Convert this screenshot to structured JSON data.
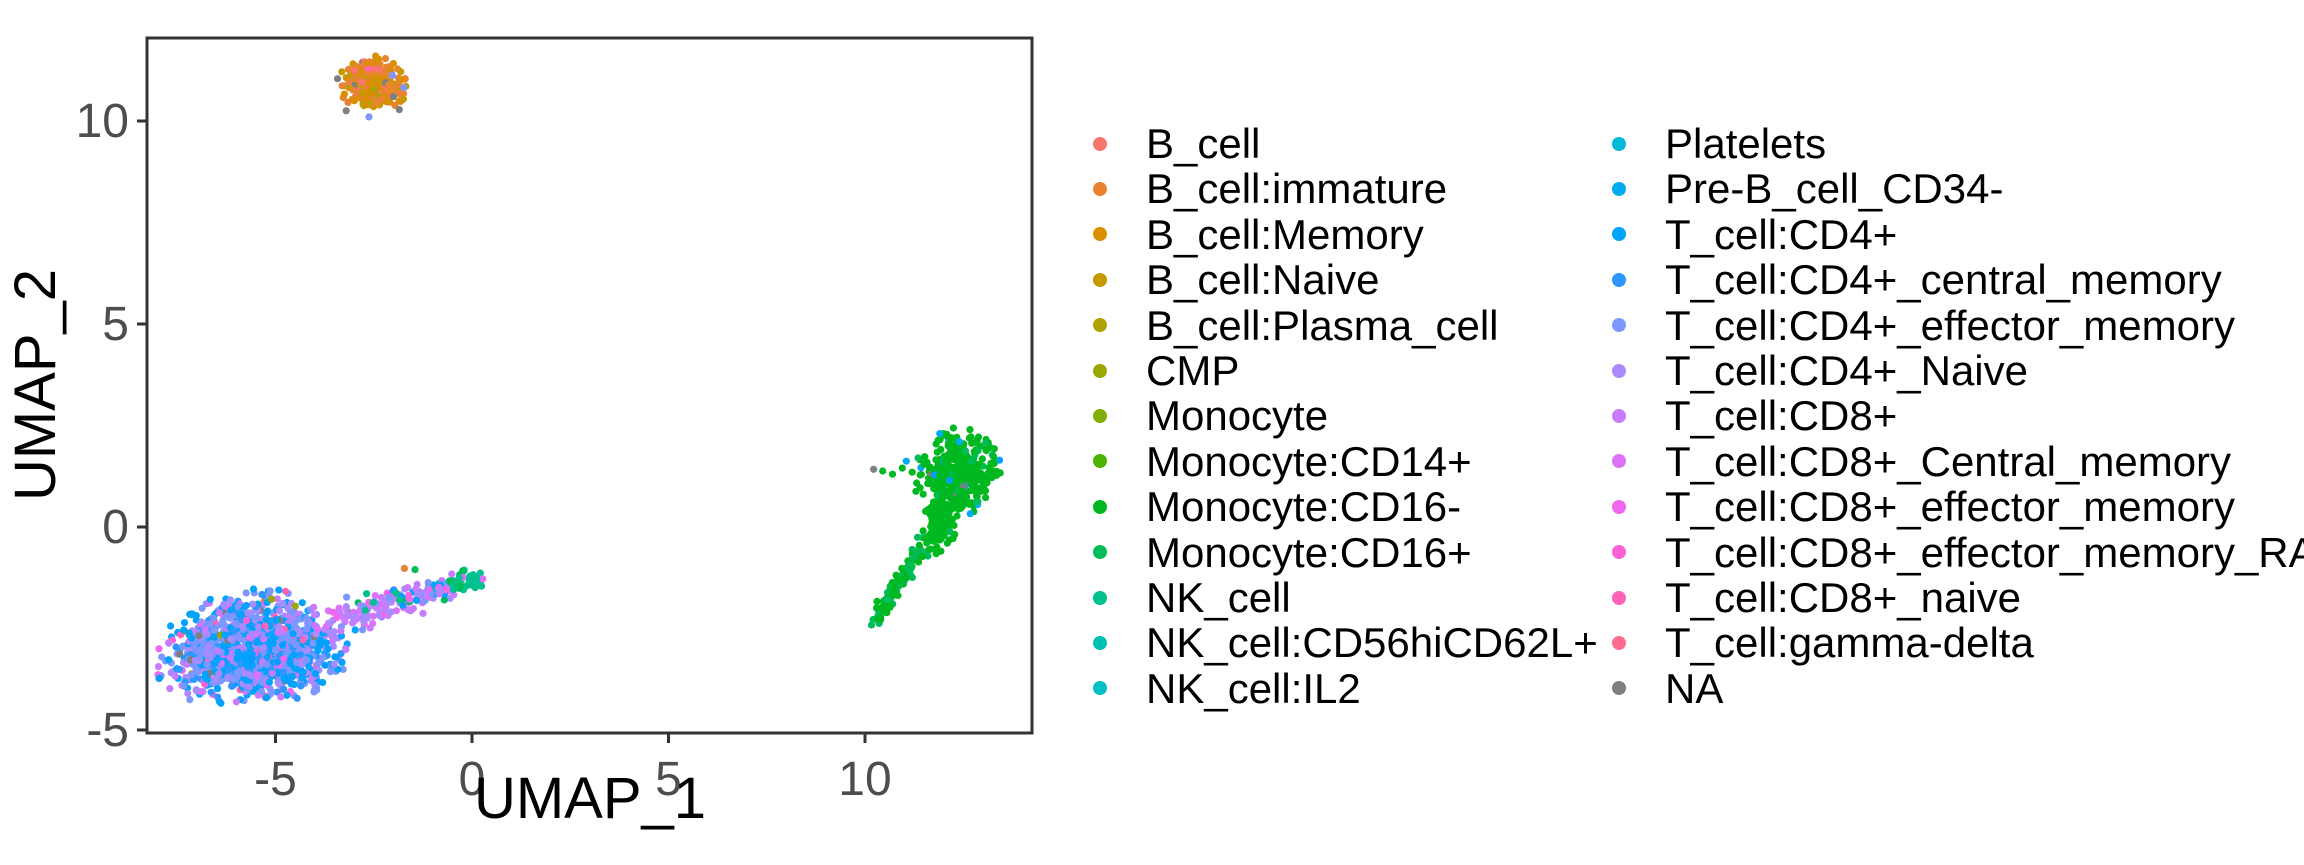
{
  "figure": {
    "background": "#FFFFFF",
    "tick_text_color": "#4D4D4D",
    "axis_title_color": "#000000",
    "panel_border_color": "#333333"
  },
  "axes": {
    "x": {
      "title": "UMAP_1",
      "ticks": [
        {
          "label": "-5",
          "value": -5
        },
        {
          "label": "0",
          "value": 0
        },
        {
          "label": "5",
          "value": 5
        },
        {
          "label": "10",
          "value": 10
        }
      ]
    },
    "y": {
      "title": "UMAP_2",
      "ticks": [
        {
          "label": "10",
          "value": 10
        },
        {
          "label": "5",
          "value": 5
        },
        {
          "label": "0",
          "value": 0
        },
        {
          "label": "-5",
          "value": -5
        }
      ]
    }
  },
  "chart_data": {
    "type": "scatter",
    "title": "",
    "xlabel": "UMAP_1",
    "ylabel": "UMAP_2",
    "xlim": [
      -8.3,
      14.3
    ],
    "ylim": [
      -5.1,
      12.0
    ],
    "x_ticks": [
      -5,
      0,
      5,
      10
    ],
    "y_ticks": [
      -5,
      0,
      5,
      10
    ],
    "grid": false,
    "legend_position": "right",
    "legend_columns": 2,
    "series": [
      {
        "name": "B_cell",
        "color": "#F8766D"
      },
      {
        "name": "B_cell:immature",
        "color": "#EA8331"
      },
      {
        "name": "B_cell:Memory",
        "color": "#DB8E00"
      },
      {
        "name": "B_cell:Naive",
        "color": "#C59900"
      },
      {
        "name": "B_cell:Plasma_cell",
        "color": "#AFA100"
      },
      {
        "name": "CMP",
        "color": "#9CA700"
      },
      {
        "name": "Monocyte",
        "color": "#7FAF00"
      },
      {
        "name": "Monocyte:CD14+",
        "color": "#4BB500"
      },
      {
        "name": "Monocyte:CD16-",
        "color": "#00B81F"
      },
      {
        "name": "Monocyte:CD16+",
        "color": "#00BC59"
      },
      {
        "name": "NK_cell",
        "color": "#00C08B"
      },
      {
        "name": "NK_cell:CD56hiCD62L+",
        "color": "#00C0B4"
      },
      {
        "name": "NK_cell:IL2",
        "color": "#00BFC9"
      },
      {
        "name": "Platelets",
        "color": "#00B9D9"
      },
      {
        "name": "Pre-B_cell_CD34-",
        "color": "#00ACEF"
      },
      {
        "name": "T_cell:CD4+",
        "color": "#00A2FC"
      },
      {
        "name": "T_cell:CD4+_central_memory",
        "color": "#2E96FF"
      },
      {
        "name": "T_cell:CD4+_effector_memory",
        "color": "#7E96FF"
      },
      {
        "name": "T_cell:CD4+_Naive",
        "color": "#A98BFF"
      },
      {
        "name": "T_cell:CD8+",
        "color": "#C77CFF"
      },
      {
        "name": "T_cell:CD8+_Central_memory",
        "color": "#DD71FA"
      },
      {
        "name": "T_cell:CD8+_effector_memory",
        "color": "#F066EC"
      },
      {
        "name": "T_cell:CD8+_effector_memory_RA",
        "color": "#FB61D5"
      },
      {
        "name": "T_cell:CD8+_naive",
        "color": "#FF62B9"
      },
      {
        "name": "T_cell:gamma-delta",
        "color": "#FF6C92"
      },
      {
        "name": "NA",
        "color": "#7F7F7F"
      }
    ],
    "clusters": [
      {
        "id": "b-cell-cluster",
        "kind": "gauss",
        "cx": -2.52,
        "cy": 10.9,
        "sx": 0.42,
        "sy": 0.33,
        "rot": 0,
        "clip_sigma": 2.2,
        "n": 290,
        "colors": [
          [
            "#EA8331",
            32
          ],
          [
            "#DB8E00",
            26
          ],
          [
            "#C59900",
            20
          ],
          [
            "#F8766D",
            13
          ],
          [
            "#AFA100",
            4
          ],
          [
            "#7F7F7F",
            3
          ],
          [
            "#FF62B9",
            1
          ],
          [
            "#7E96FF",
            1
          ]
        ]
      },
      {
        "id": "t-cell-main",
        "kind": "gauss",
        "cx": -5.85,
        "cy": -2.95,
        "sx": 1.05,
        "sy": 0.62,
        "rot": 14,
        "clip_sigma": 2.2,
        "n": 950,
        "colors": [
          [
            "#00A2FC",
            30
          ],
          [
            "#7E96FF",
            27
          ],
          [
            "#A98BFF",
            13
          ],
          [
            "#C77CFF",
            9
          ],
          [
            "#2E96FF",
            8
          ],
          [
            "#FF62B9",
            3.5
          ],
          [
            "#DD71FA",
            3
          ],
          [
            "#F066EC",
            2
          ],
          [
            "#FB61D5",
            1.5
          ],
          [
            "#7F7F7F",
            1.5
          ],
          [
            "#9CA700",
            0.8
          ],
          [
            "#FF6C92",
            0.4
          ],
          [
            "#C59900",
            0.3
          ],
          [
            "#00C08B",
            0.3
          ],
          [
            "#EA8331",
            0.2
          ]
        ]
      },
      {
        "id": "t-cell-lobe",
        "kind": "gauss",
        "cx": -4.6,
        "cy": -3.25,
        "sx": 0.75,
        "sy": 0.5,
        "rot": 10,
        "clip_sigma": 2.0,
        "n": 330,
        "colors": [
          [
            "#00A2FC",
            34
          ],
          [
            "#7E96FF",
            28
          ],
          [
            "#A98BFF",
            14
          ],
          [
            "#C77CFF",
            8
          ],
          [
            "#2E96FF",
            7
          ],
          [
            "#FF62B9",
            3
          ],
          [
            "#DD71FA",
            2
          ],
          [
            "#F066EC",
            1.5
          ],
          [
            "#FB61D5",
            1
          ],
          [
            "#7F7F7F",
            1
          ],
          [
            "#9CA700",
            0.5
          ]
        ]
      },
      {
        "id": "t-nk-arm",
        "kind": "line",
        "x1": -3.9,
        "y1": -2.45,
        "x2": -0.55,
        "y2": -1.45,
        "w": 0.22,
        "taper": 0.45,
        "n": 180,
        "colors": [
          [
            "#C77CFF",
            38
          ],
          [
            "#A98BFF",
            20
          ],
          [
            "#DD71FA",
            12
          ],
          [
            "#7E96FF",
            12
          ],
          [
            "#F066EC",
            5
          ],
          [
            "#00C08B",
            5
          ],
          [
            "#00A2FC",
            4
          ],
          [
            "#00BC59",
            3
          ],
          [
            "#FF62B9",
            1
          ]
        ]
      },
      {
        "id": "nk-cluster",
        "kind": "gauss",
        "cx": -0.15,
        "cy": -1.35,
        "sx": 0.28,
        "sy": 0.16,
        "rot": 15,
        "clip_sigma": 2.0,
        "n": 42,
        "colors": [
          [
            "#00C08B",
            55
          ],
          [
            "#00BC59",
            30
          ],
          [
            "#00C0B4",
            5
          ],
          [
            "#C77CFF",
            5
          ],
          [
            "#DD71FA",
            5
          ]
        ]
      },
      {
        "id": "monocyte-blob",
        "kind": "gauss",
        "cx": 12.35,
        "cy": 1.3,
        "sx": 0.5,
        "sy": 0.55,
        "rot": -18,
        "clip_sigma": 2.2,
        "n": 340,
        "colors": [
          [
            "#00B81F",
            90
          ],
          [
            "#00BC59",
            6
          ],
          [
            "#00ACEF",
            2
          ],
          [
            "#00A2FC",
            1
          ],
          [
            "#7F7F7F",
            1
          ]
        ]
      },
      {
        "id": "monocyte-neck",
        "kind": "gauss",
        "cx": 11.9,
        "cy": 0.1,
        "sx": 0.22,
        "sy": 0.4,
        "rot": -8,
        "clip_sigma": 2.0,
        "n": 95,
        "colors": [
          [
            "#00B81F",
            84
          ],
          [
            "#00BC59",
            16
          ]
        ]
      },
      {
        "id": "monocyte-tail",
        "kind": "line",
        "x1": 11.6,
        "y1": -0.2,
        "x2": 10.35,
        "y2": -2.25,
        "w": 0.1,
        "taper": 0.2,
        "n": 115,
        "colors": [
          [
            "#00B81F",
            60
          ],
          [
            "#00BC59",
            40
          ]
        ]
      },
      {
        "id": "extra-points",
        "kind": "points",
        "pts": [
          [
            10.22,
            1.42,
            "#7F7F7F"
          ],
          [
            10.45,
            1.38,
            "#00B81F"
          ],
          [
            10.7,
            1.3,
            "#00B81F"
          ],
          [
            10.95,
            1.45,
            "#00B81F"
          ],
          [
            11.2,
            1.35,
            "#00B81F"
          ],
          [
            11.05,
            1.62,
            "#00ACEF"
          ],
          [
            11.35,
            1.7,
            "#00BC59"
          ],
          [
            11.5,
            1.55,
            "#00B81F"
          ],
          [
            12.4,
            2.1,
            "#00ACEF"
          ],
          [
            12.15,
            1.15,
            "#00A2FC"
          ],
          [
            11.9,
            2.3,
            "#00ACEF"
          ],
          [
            -1.72,
            -1.02,
            "#EA8331"
          ],
          [
            -1.45,
            -1.05,
            "#00BC59"
          ],
          [
            -1.85,
            10.28,
            "#7F7F7F"
          ],
          [
            -2.62,
            10.1,
            "#7E96FF"
          ],
          [
            -3.2,
            10.25,
            "#7F7F7F"
          ],
          [
            -2.0,
            10.6,
            "#7F7F7F"
          ]
        ]
      }
    ]
  }
}
